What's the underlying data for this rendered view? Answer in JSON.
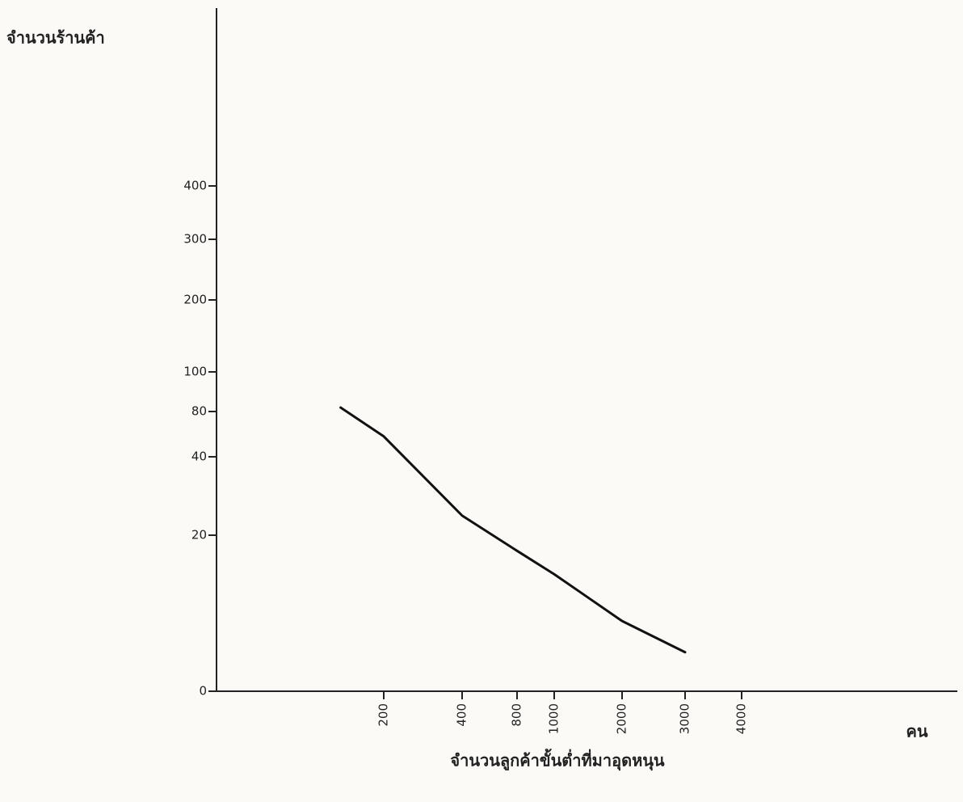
{
  "chart_data": {
    "type": "line",
    "ylabel": "จำนวนร้านค้า",
    "xlabel": "จำนวนลูกค้าขั้นต่ำที่มาอุดหนุน",
    "xunit": "คน",
    "x": [
      90,
      200,
      400,
      800,
      1000,
      1500,
      2000,
      3000
    ],
    "series": [
      {
        "color": "#111111",
        "values": [
          82,
          58,
          25,
          18,
          15,
          12,
          9,
          5
        ]
      }
    ],
    "yticks": [
      0,
      20,
      40,
      80,
      100,
      200,
      300,
      400
    ],
    "xticks": [
      200,
      400,
      800,
      1000,
      2000,
      3000,
      4000
    ]
  }
}
